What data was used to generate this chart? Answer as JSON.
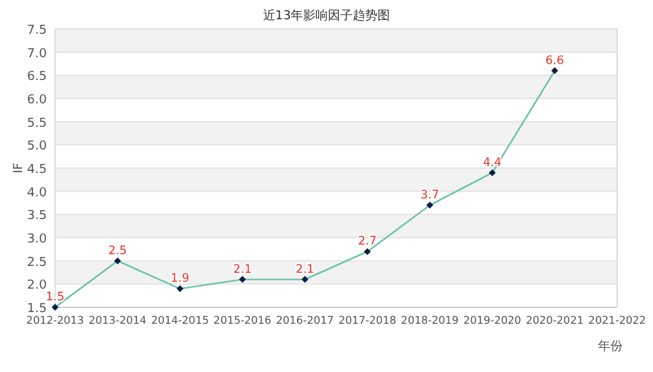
{
  "chart_data": {
    "type": "line",
    "title": "近13年影响因子趋势图",
    "xlabel": "年份",
    "ylabel": "IF",
    "categories": [
      "2012-2013",
      "2013-2014",
      "2014-2015",
      "2015-2016",
      "2016-2017",
      "2017-2018",
      "2018-2019",
      "2019-2020",
      "2020-2021",
      "2021-2022"
    ],
    "series": [
      {
        "color": "#6cc3a8",
        "values": [
          1.5,
          2.5,
          1.9,
          2.1,
          2.1,
          2.7,
          3.7,
          4.4,
          6.6,
          null
        ]
      }
    ],
    "ylim": [
      1.5,
      7.5
    ],
    "yticks": [
      {
        "value": 1.5,
        "label": "1.5"
      },
      {
        "value": 2,
        "label": "2.0"
      },
      {
        "value": 2.5,
        "label": "2.5"
      },
      {
        "value": 3,
        "label": "3.0"
      },
      {
        "value": 3.5,
        "label": "3.5"
      },
      {
        "value": 4,
        "label": "4.0"
      },
      {
        "value": 4.5,
        "label": "4.5"
      },
      {
        "value": 5,
        "label": "5.0"
      },
      {
        "value": 5.5,
        "label": "5.5"
      },
      {
        "value": 6,
        "label": "6.0"
      },
      {
        "value": 6.5,
        "label": "6.5"
      },
      {
        "value": 7,
        "label": "7.0"
      },
      {
        "value": 7.5,
        "label": "7.5"
      }
    ],
    "grid": "y",
    "marker": "diamond",
    "line_style": "solid",
    "data_labels": true
  }
}
